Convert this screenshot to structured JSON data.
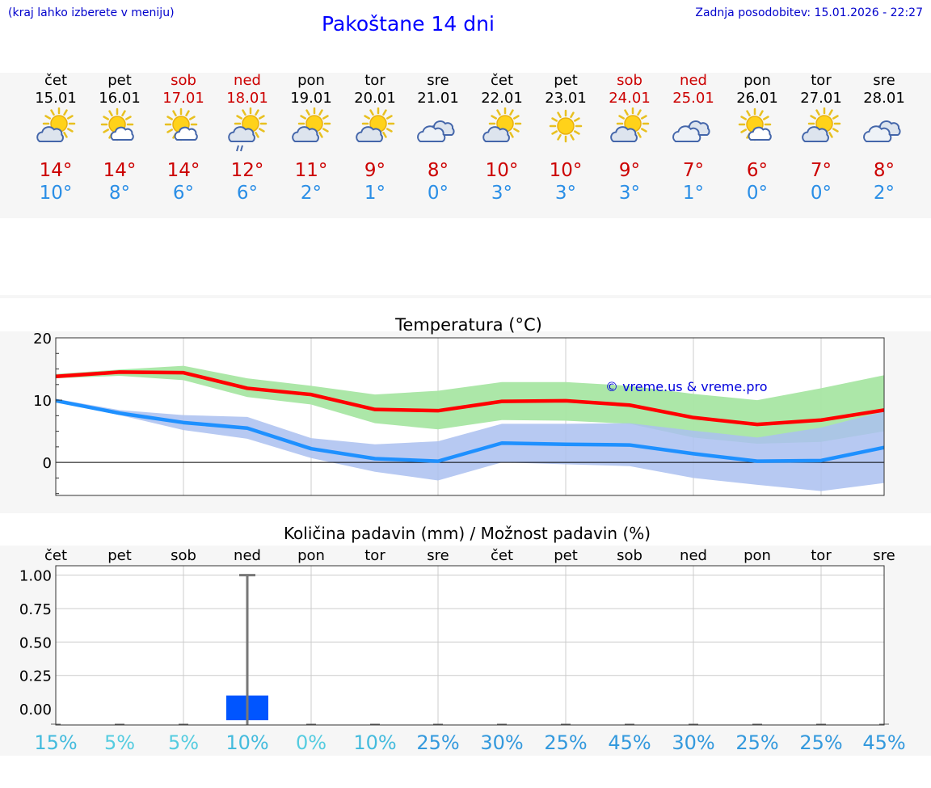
{
  "header": {
    "hint": "(kraj lahko izberete v meniju)",
    "title": "Pakoštane 14 dni",
    "updated": "Zadnja posodobitev: 15.01.2026 - 22:27"
  },
  "days": [
    {
      "name": "čet",
      "date": "15.01",
      "weekend": false,
      "icon": "sun-cloud-icon",
      "tmax": "14°",
      "tmin": "10°"
    },
    {
      "name": "pet",
      "date": "16.01",
      "weekend": false,
      "icon": "sun-small-cloud-icon",
      "tmax": "14°",
      "tmin": "8°"
    },
    {
      "name": "sob",
      "date": "17.01",
      "weekend": true,
      "icon": "sun-small-cloud-icon",
      "tmax": "14°",
      "tmin": "6°"
    },
    {
      "name": "ned",
      "date": "18.01",
      "weekend": true,
      "icon": "sun-cloud-rain-icon",
      "tmax": "12°",
      "tmin": "6°"
    },
    {
      "name": "pon",
      "date": "19.01",
      "weekend": false,
      "icon": "sun-cloud-icon",
      "tmax": "11°",
      "tmin": "2°"
    },
    {
      "name": "tor",
      "date": "20.01",
      "weekend": false,
      "icon": "sun-cloud-icon",
      "tmax": "9°",
      "tmin": "1°"
    },
    {
      "name": "sre",
      "date": "21.01",
      "weekend": false,
      "icon": "cloud-icon",
      "tmax": "8°",
      "tmin": "0°"
    },
    {
      "name": "čet",
      "date": "22.01",
      "weekend": false,
      "icon": "sun-cloud-icon",
      "tmax": "10°",
      "tmin": "3°"
    },
    {
      "name": "pet",
      "date": "23.01",
      "weekend": false,
      "icon": "sun-icon",
      "tmax": "10°",
      "tmin": "3°"
    },
    {
      "name": "sob",
      "date": "24.01",
      "weekend": true,
      "icon": "sun-cloud-icon",
      "tmax": "9°",
      "tmin": "3°"
    },
    {
      "name": "ned",
      "date": "25.01",
      "weekend": true,
      "icon": "cloud-icon",
      "tmax": "7°",
      "tmin": "1°"
    },
    {
      "name": "pon",
      "date": "26.01",
      "weekend": false,
      "icon": "sun-small-cloud-icon",
      "tmax": "6°",
      "tmin": "0°"
    },
    {
      "name": "tor",
      "date": "27.01",
      "weekend": false,
      "icon": "sun-cloud-icon",
      "tmax": "7°",
      "tmin": "0°"
    },
    {
      "name": "sre",
      "date": "28.01",
      "weekend": false,
      "icon": "cloud-icon",
      "tmax": "8°",
      "tmin": "2°"
    }
  ],
  "colors": {
    "max_line": "#ff0000",
    "min_line": "#1e90ff",
    "max_band": "#a8e6a3",
    "min_band": "#aabff0",
    "weekend": "#cc0000",
    "bar": "#0055ff",
    "whisker": "#777777"
  },
  "chart_data": [
    {
      "type": "line",
      "title": "Temperatura (°C)",
      "watermark": "© vreme.us & vreme.pro",
      "ylim": [
        -5.3,
        20
      ],
      "yticks": [
        0,
        10,
        20
      ],
      "x": [
        0,
        1,
        2,
        3,
        4,
        5,
        6,
        7,
        8,
        9,
        10,
        11,
        12,
        13
      ],
      "series": [
        {
          "name": "max",
          "values": [
            13.8,
            14.5,
            14.4,
            11.9,
            10.9,
            8.5,
            8.3,
            9.8,
            9.9,
            9.2,
            7.2,
            6.1,
            6.8,
            8.4
          ],
          "band_low": [
            13.5,
            13.9,
            13.2,
            10.5,
            9.3,
            6.3,
            5.3,
            6.8,
            6.7,
            6.2,
            4.0,
            3.0,
            3.3,
            5.0
          ],
          "band_high": [
            14.2,
            14.9,
            15.5,
            13.5,
            12.3,
            10.9,
            11.5,
            12.9,
            12.9,
            12.3,
            11.0,
            10.0,
            11.9,
            14.0
          ]
        },
        {
          "name": "min",
          "values": [
            9.9,
            7.9,
            6.4,
            5.5,
            2.2,
            0.6,
            0.2,
            3.1,
            2.9,
            2.8,
            1.4,
            0.2,
            0.3,
            2.4
          ],
          "band_low": [
            9.7,
            7.6,
            5.2,
            3.8,
            0.7,
            -1.5,
            -2.9,
            0.0,
            -0.3,
            -0.6,
            -2.5,
            -3.6,
            -4.6,
            -3.3
          ],
          "band_high": [
            10.2,
            8.4,
            7.6,
            7.3,
            3.9,
            2.9,
            3.4,
            6.2,
            6.2,
            6.3,
            5.1,
            4.0,
            5.6,
            8.2
          ]
        }
      ]
    },
    {
      "type": "bar",
      "title": "Količina padavin (mm) / Možnost padavin (%)",
      "categories": [
        "čet",
        "pet",
        "sob",
        "ned",
        "pon",
        "tor",
        "sre",
        "čet",
        "pet",
        "sob",
        "ned",
        "pon",
        "tor",
        "sre"
      ],
      "ylim": [
        -0.12,
        1.07
      ],
      "yticks": [
        "1.00",
        "0.75",
        "0.50",
        "0.25",
        "0.00"
      ],
      "values": [
        0,
        0,
        0,
        0.1,
        0,
        0,
        0,
        0,
        0,
        0,
        0,
        0,
        0,
        0
      ],
      "whisker_high": [
        0,
        0,
        0,
        1.0,
        0,
        0,
        0,
        0,
        0,
        0,
        0,
        0,
        0,
        0
      ],
      "probability": [
        "15%",
        "5%",
        "5%",
        "10%",
        "0%",
        "10%",
        "25%",
        "30%",
        "25%",
        "45%",
        "30%",
        "25%",
        "25%",
        "45%"
      ]
    }
  ]
}
